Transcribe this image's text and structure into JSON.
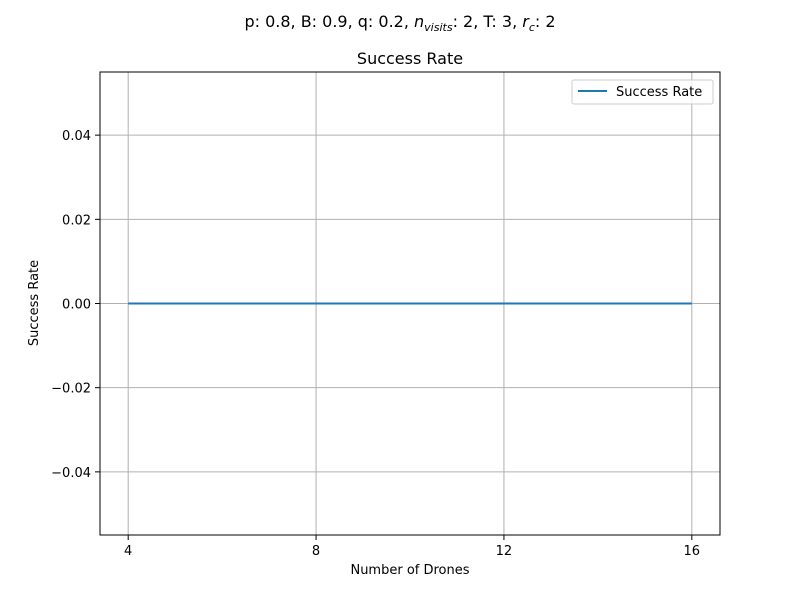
{
  "figure": {
    "suptitle_parts": {
      "p": "p: 0.8, B: 0.9, q: 0.2, ",
      "n_main": "n",
      "n_sub": "visits",
      "t": ": 2, T: 3, ",
      "r_main": "r",
      "r_sub": "c",
      "end": ": 2"
    }
  },
  "chart_data": {
    "type": "line",
    "title": "Success Rate",
    "xlabel": "Number of Drones",
    "ylabel": "Success Rate",
    "x": [
      4,
      8,
      12,
      16
    ],
    "xticks": [
      4,
      8,
      12,
      16
    ],
    "xtick_labels": [
      "4",
      "8",
      "12",
      "16"
    ],
    "yticks": [
      -0.04,
      -0.02,
      0.0,
      0.02,
      0.04
    ],
    "ytick_labels": [
      "−0.04",
      "−0.02",
      "0.00",
      "0.02",
      "0.04"
    ],
    "xlim": [
      3.4,
      16.6
    ],
    "ylim": [
      -0.055,
      0.055
    ],
    "grid": true,
    "legend_position": "top-right",
    "series": [
      {
        "name": "Success Rate",
        "color": "#1f77b4",
        "values": [
          0.0,
          0.0,
          0.0,
          0.0
        ]
      }
    ]
  }
}
